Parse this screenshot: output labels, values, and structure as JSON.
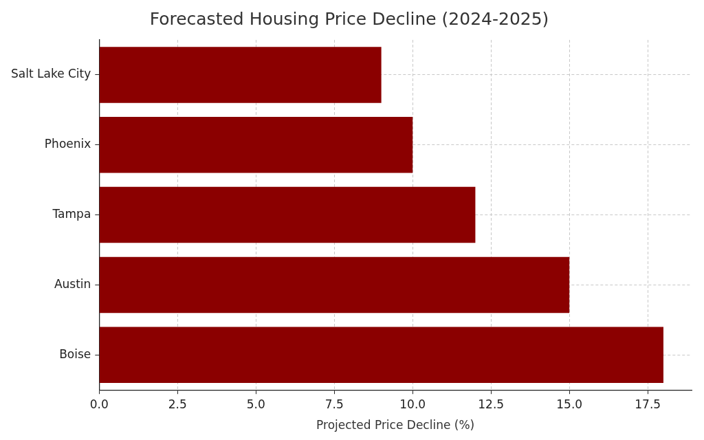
{
  "chart_data": {
    "type": "bar",
    "orientation": "horizontal",
    "title": "Forecasted Housing Price Decline (2024-2025)",
    "x_label": "Projected Price Decline (%)",
    "categories": [
      "Salt Lake City",
      "Phoenix",
      "Tampa",
      "Austin",
      "Boise"
    ],
    "values": [
      9,
      10,
      12,
      15,
      18
    ],
    "color": "#8b0000",
    "xlim": [
      0,
      18.9
    ],
    "xticks": [
      {
        "value": 0,
        "label": "0.0"
      },
      {
        "value": 2.5,
        "label": "2.5"
      },
      {
        "value": 5,
        "label": "5.0"
      },
      {
        "value": 7.5,
        "label": "7.5"
      },
      {
        "value": 10,
        "label": "10.0"
      },
      {
        "value": 12.5,
        "label": "12.5"
      },
      {
        "value": 15,
        "label": "15.0"
      },
      {
        "value": 17.5,
        "label": "17.5"
      }
    ],
    "grid": true
  }
}
